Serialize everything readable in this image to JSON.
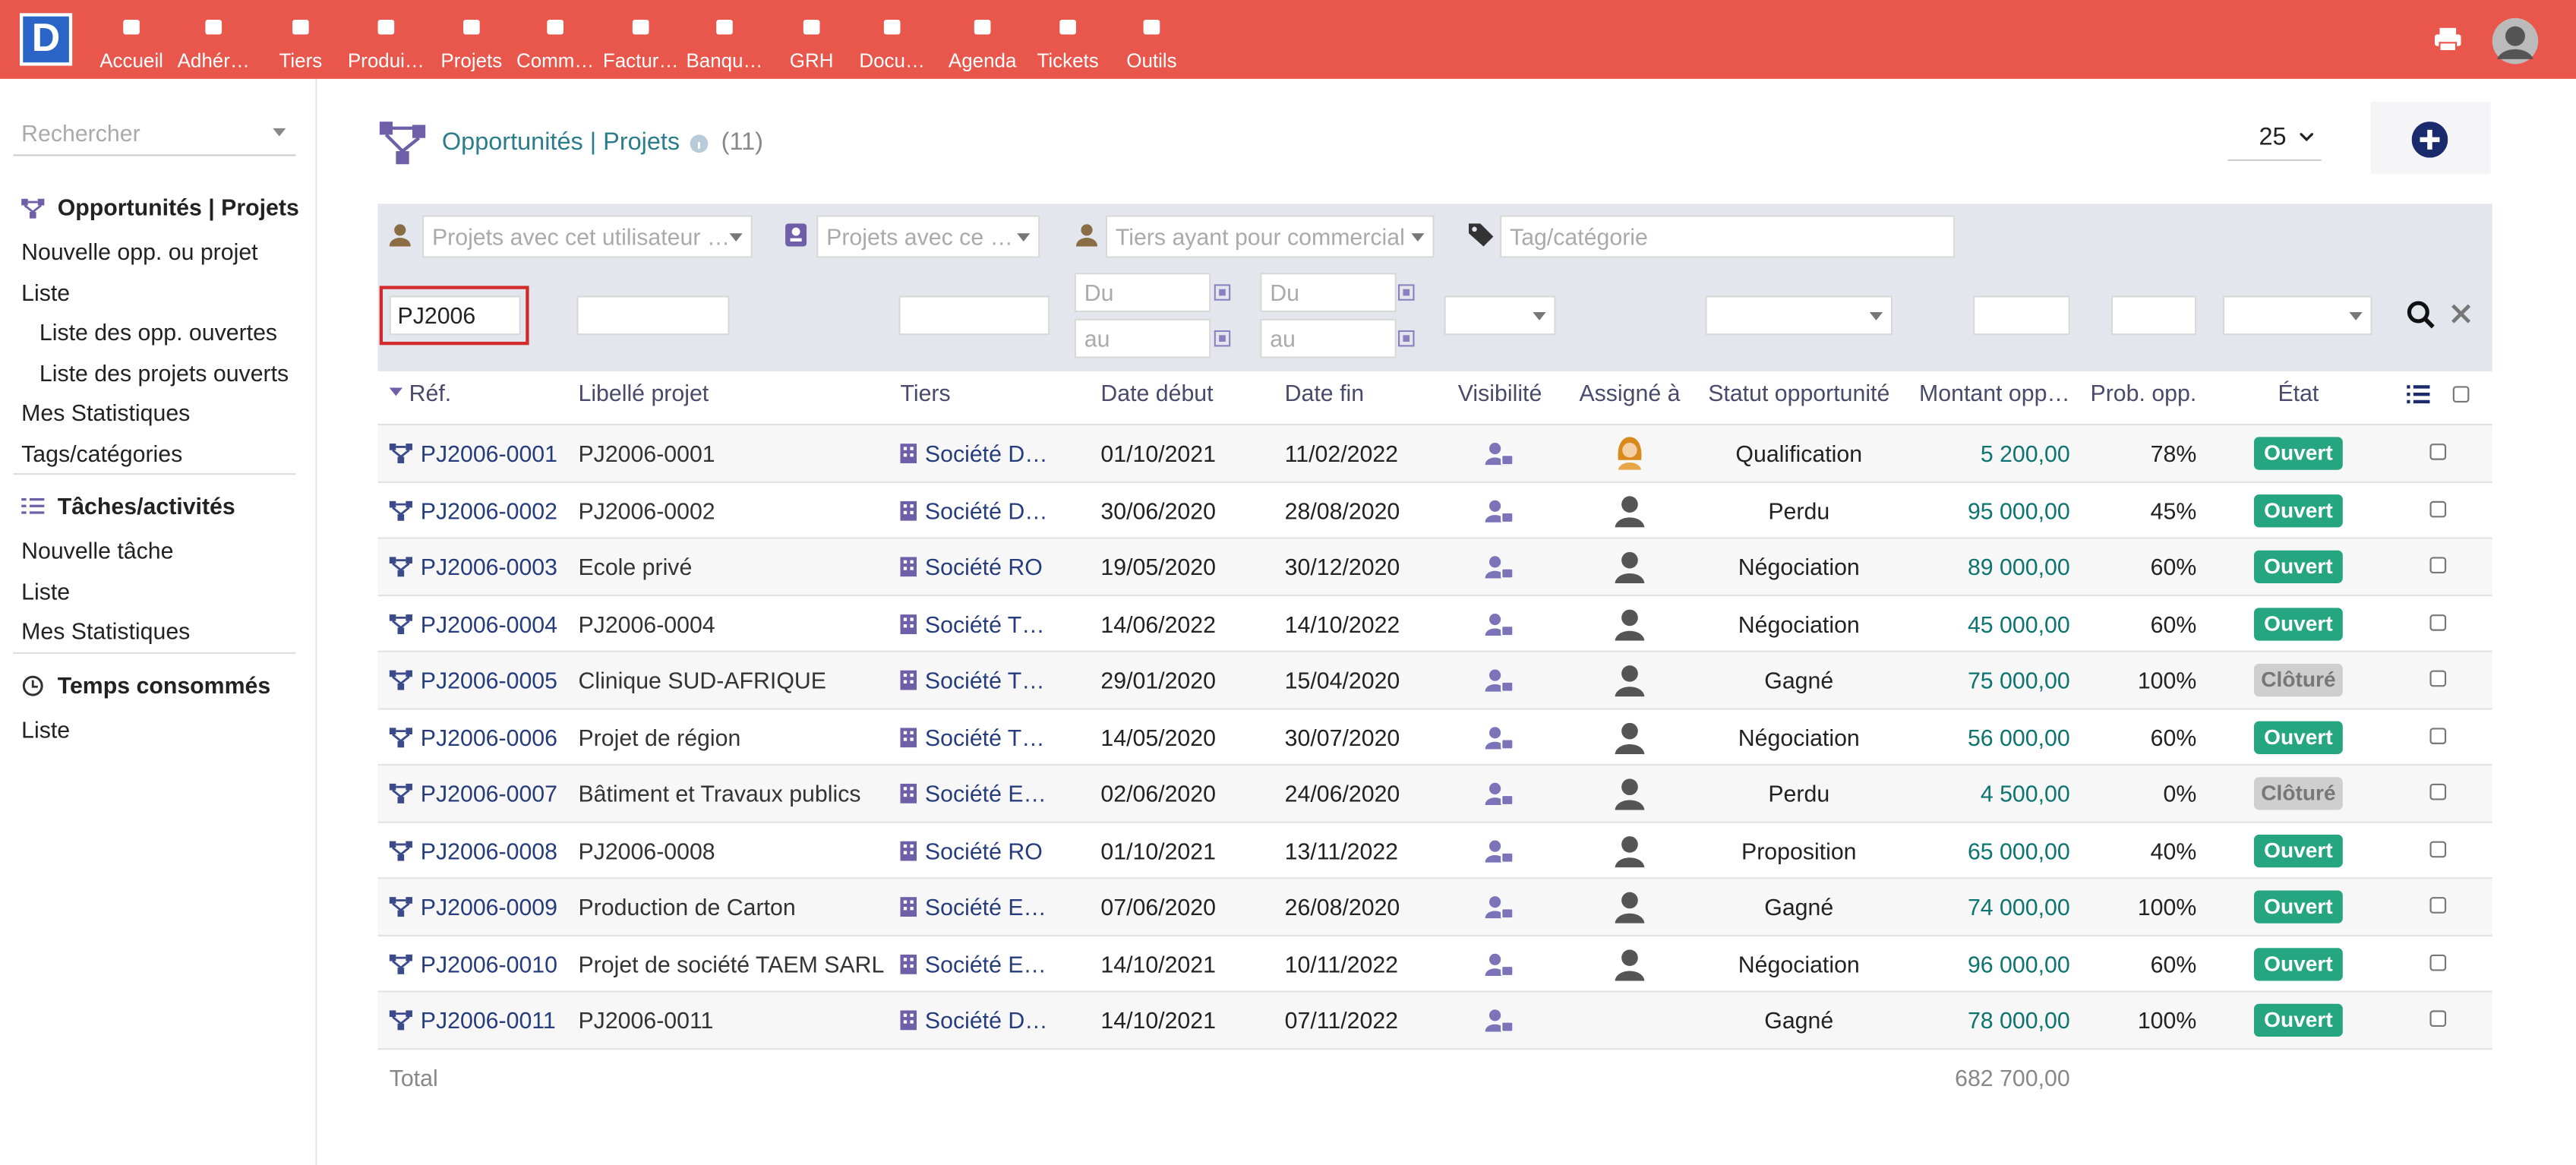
{
  "nav": {
    "logo": "D",
    "items": [
      "Accueil",
      "Adhér…",
      "Tiers",
      "Produi…",
      "Projets",
      "Comm…",
      "Factur…",
      "Banqu…",
      "GRH",
      "Docu…",
      "Agenda",
      "Tickets",
      "Outils"
    ]
  },
  "sidebar": {
    "search": "Rechercher",
    "sections": [
      {
        "title": "Opportunités | Projets",
        "items": [
          {
            "label": "Nouvelle opp. ou projet"
          },
          {
            "label": "Liste",
            "children": [
              "Liste des opp. ouvertes",
              "Liste des projets ouverts"
            ]
          },
          {
            "label": "Mes Statistiques"
          },
          {
            "label": "Tags/catégories"
          }
        ]
      },
      {
        "title": "Tâches/activités",
        "items": [
          {
            "label": "Nouvelle tâche"
          },
          {
            "label": "Liste"
          },
          {
            "label": "Mes Statistiques"
          }
        ]
      },
      {
        "title": "Temps consommés",
        "items": [
          {
            "label": "Liste"
          }
        ]
      }
    ]
  },
  "header": {
    "title": "Opportunités | Projets",
    "count": "(11)",
    "page_size": 25
  },
  "filters": {
    "user": "Projets avec cet utilisateur …",
    "contact": "Projets avec ce …",
    "sales": "Tiers ayant pour commercial",
    "tag": "Tag/catégorie",
    "ref": "PJ2006",
    "date_from": "Du",
    "date_to": "au"
  },
  "table": {
    "columns": [
      "Réf.",
      "Libellé projet",
      "Tiers",
      "Date début",
      "Date fin",
      "Visibilité",
      "Assigné à",
      "Statut opportunité",
      "Montant opp…",
      "Prob. opp.",
      "État"
    ],
    "badge_colors": {
      "Ouvert": "#25a580",
      "Clôturé": "#cfcfcf"
    },
    "rows": [
      {
        "ref": "PJ2006-0001",
        "label": "PJ2006-0001",
        "tiers": "Société D…",
        "start": "01/10/2021",
        "end": "11/02/2022",
        "assigned": "female",
        "status": "Qualification",
        "amount": "5 200,00",
        "prob": "78%",
        "state": "Ouvert"
      },
      {
        "ref": "PJ2006-0002",
        "label": "PJ2006-0002",
        "tiers": "Société D…",
        "start": "30/06/2020",
        "end": "28/08/2020",
        "assigned": "male",
        "status": "Perdu",
        "amount": "95 000,00",
        "prob": "45%",
        "state": "Ouvert"
      },
      {
        "ref": "PJ2006-0003",
        "label": "Ecole privé",
        "tiers": "Société RO",
        "start": "19/05/2020",
        "end": "30/12/2020",
        "assigned": "male",
        "status": "Négociation",
        "amount": "89 000,00",
        "prob": "60%",
        "state": "Ouvert"
      },
      {
        "ref": "PJ2006-0004",
        "label": "PJ2006-0004",
        "tiers": "Société T…",
        "start": "14/06/2022",
        "end": "14/10/2022",
        "assigned": "male",
        "status": "Négociation",
        "amount": "45 000,00",
        "prob": "60%",
        "state": "Ouvert"
      },
      {
        "ref": "PJ2006-0005",
        "label": "Clinique SUD-AFRIQUE",
        "tiers": "Société T…",
        "start": "29/01/2020",
        "end": "15/04/2020",
        "assigned": "male",
        "status": "Gagné",
        "amount": "75 000,00",
        "prob": "100%",
        "state": "Clôturé"
      },
      {
        "ref": "PJ2006-0006",
        "label": "Projet de région",
        "tiers": "Société T…",
        "start": "14/05/2020",
        "end": "30/07/2020",
        "assigned": "male",
        "status": "Négociation",
        "amount": "56 000,00",
        "prob": "60%",
        "state": "Ouvert"
      },
      {
        "ref": "PJ2006-0007",
        "label": "Bâtiment et Travaux publics",
        "tiers": "Société E…",
        "start": "02/06/2020",
        "end": "24/06/2020",
        "assigned": "male",
        "status": "Perdu",
        "amount": "4 500,00",
        "prob": "0%",
        "state": "Clôturé"
      },
      {
        "ref": "PJ2006-0008",
        "label": "PJ2006-0008",
        "tiers": "Société RO",
        "start": "01/10/2021",
        "end": "13/11/2022",
        "assigned": "male",
        "status": "Proposition",
        "amount": "65 000,00",
        "prob": "40%",
        "state": "Ouvert"
      },
      {
        "ref": "PJ2006-0009",
        "label": "Production de Carton",
        "tiers": "Société E…",
        "start": "07/06/2020",
        "end": "26/08/2020",
        "assigned": "male",
        "status": "Gagné",
        "amount": "74 000,00",
        "prob": "100%",
        "state": "Ouvert"
      },
      {
        "ref": "PJ2006-0010",
        "label": "Projet de société TAEM SARL",
        "tiers": "Société E…",
        "start": "14/10/2021",
        "end": "10/11/2022",
        "assigned": "male",
        "status": "Négociation",
        "amount": "96 000,00",
        "prob": "60%",
        "state": "Ouvert"
      },
      {
        "ref": "PJ2006-0011",
        "label": "PJ2006-0011",
        "tiers": "Société D…",
        "start": "14/10/2021",
        "end": "07/11/2022",
        "assigned": null,
        "status": "Gagné",
        "amount": "78 000,00",
        "prob": "100%",
        "state": "Ouvert"
      }
    ],
    "total": {
      "label": "Total",
      "value": "682 700,00"
    }
  }
}
